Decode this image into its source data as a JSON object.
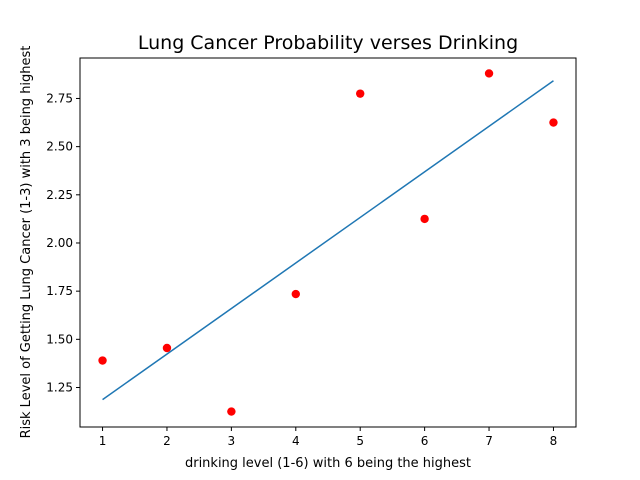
{
  "chart_data": {
    "type": "scatter",
    "title": "Lung Cancer Probability verses Drinking",
    "xlabel": "drinking level (1-6) with 6 being the highest",
    "ylabel": "Risk Level of Getting Lung Cancer (1-3) with 3 being highest",
    "xlim": [
      0.65,
      8.35
    ],
    "ylim": [
      1.045,
      2.96
    ],
    "xticks": [
      1,
      2,
      3,
      4,
      5,
      6,
      7,
      8
    ],
    "yticks": [
      1.25,
      1.5,
      1.75,
      2.0,
      2.25,
      2.5,
      2.75
    ],
    "ytick_labels": [
      "1.25",
      "1.50",
      "1.75",
      "2.00",
      "2.25",
      "2.50",
      "2.75"
    ],
    "grid": false,
    "series": [
      {
        "kind": "scatter",
        "color": "#ff0000",
        "x": [
          1,
          2,
          3,
          4,
          5,
          6,
          7,
          8
        ],
        "y": [
          1.39,
          1.455,
          1.125,
          1.735,
          2.775,
          2.125,
          2.88,
          2.625
        ]
      },
      {
        "kind": "line",
        "color": "#1f77b4",
        "x": [
          1,
          8
        ],
        "y": [
          1.187,
          2.842
        ]
      }
    ]
  }
}
